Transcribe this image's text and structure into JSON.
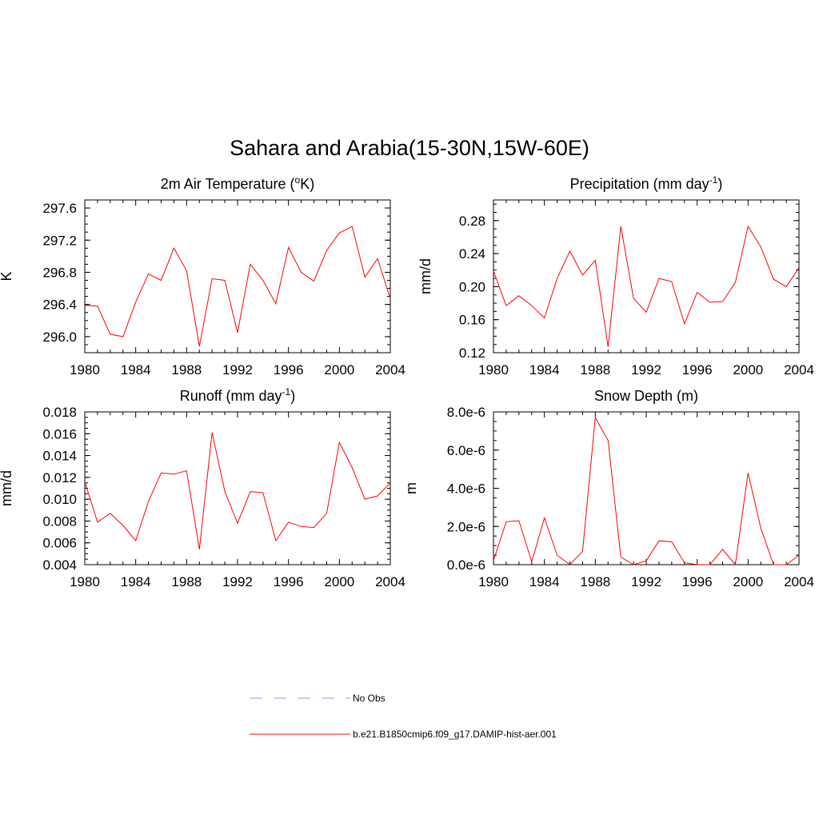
{
  "figure": {
    "title": "Sahara and Arabia(15-30N,15W-60E)"
  },
  "legend": [
    {
      "label": "No Obs",
      "color": "#9999ee",
      "style": "dashed"
    },
    {
      "label": "b.e21.B1850cmip6.f09_g17.DAMIP-hist-aer.001",
      "color": "#ff0000",
      "style": "solid"
    }
  ],
  "chart_data": [
    {
      "type": "line",
      "title": "2m Air Temperature (",
      "title_sup": "o",
      "title_after": "K)",
      "ylabel": "K",
      "xlim": [
        1980,
        2004
      ],
      "ylim": [
        295.8,
        297.7
      ],
      "x_ticks": [
        "1980",
        "1984",
        "1988",
        "1992",
        "1996",
        "2000",
        "2004"
      ],
      "y_ticks": [
        "296.0",
        "296.4",
        "296.8",
        "297.2",
        "297.6"
      ],
      "y_tick_values": [
        296.0,
        296.4,
        296.8,
        297.2,
        297.6
      ],
      "y_minor_step": 0.1,
      "x": [
        1980,
        1981,
        1982,
        1983,
        1984,
        1985,
        1986,
        1987,
        1988,
        1989,
        1990,
        1991,
        1992,
        1993,
        1994,
        1995,
        1996,
        1997,
        1998,
        1999,
        2000,
        2001,
        2002,
        2003,
        2004
      ],
      "series": [
        {
          "color": "#ff0000",
          "values": [
            296.39,
            296.38,
            296.03,
            296.0,
            296.43,
            296.78,
            296.7,
            297.1,
            296.82,
            295.88,
            296.72,
            296.7,
            296.05,
            296.9,
            296.7,
            296.41,
            297.11,
            296.8,
            296.69,
            297.07,
            297.29,
            297.37,
            296.74,
            296.97,
            296.47
          ]
        }
      ]
    },
    {
      "type": "line",
      "title": "Precipitation (mm day",
      "title_sup": "-1",
      "title_after": ")",
      "ylabel": "mm/d",
      "xlim": [
        1980,
        2004
      ],
      "ylim": [
        0.12,
        0.305
      ],
      "x_ticks": [
        "1980",
        "1984",
        "1988",
        "1992",
        "1996",
        "2000",
        "2004"
      ],
      "y_ticks": [
        "0.12",
        "0.16",
        "0.20",
        "0.24",
        "0.28"
      ],
      "y_tick_values": [
        0.12,
        0.16,
        0.2,
        0.24,
        0.28
      ],
      "y_minor_step": 0.01,
      "x": [
        1980,
        1981,
        1982,
        1983,
        1984,
        1985,
        1986,
        1987,
        1988,
        1989,
        1990,
        1991,
        1992,
        1993,
        1994,
        1995,
        1996,
        1997,
        1998,
        1999,
        2000,
        2001,
        2002,
        2003,
        2004
      ],
      "series": [
        {
          "color": "#ff0000",
          "values": [
            0.219,
            0.177,
            0.189,
            0.177,
            0.162,
            0.21,
            0.243,
            0.214,
            0.232,
            0.127,
            0.273,
            0.186,
            0.169,
            0.21,
            0.206,
            0.155,
            0.193,
            0.181,
            0.182,
            0.205,
            0.273,
            0.248,
            0.209,
            0.2,
            0.223
          ]
        }
      ]
    },
    {
      "type": "line",
      "title": "Runoff (mm day",
      "title_sup": "-1",
      "title_after": ")",
      "ylabel": "mm/d",
      "xlim": [
        1980,
        2004
      ],
      "ylim": [
        0.004,
        0.018
      ],
      "x_ticks": [
        "1980",
        "1984",
        "1988",
        "1992",
        "1996",
        "2000",
        "2004"
      ],
      "y_ticks": [
        "0.004",
        "0.006",
        "0.008",
        "0.010",
        "0.012",
        "0.014",
        "0.016",
        "0.018"
      ],
      "y_tick_values": [
        0.004,
        0.006,
        0.008,
        0.01,
        0.012,
        0.014,
        0.016,
        0.018
      ],
      "y_minor_step": 0.0005,
      "x": [
        1980,
        1981,
        1982,
        1983,
        1984,
        1985,
        1986,
        1987,
        1988,
        1989,
        1990,
        1991,
        1992,
        1993,
        1994,
        1995,
        1996,
        1997,
        1998,
        1999,
        2000,
        2001,
        2002,
        2003,
        2004
      ],
      "series": [
        {
          "color": "#ff0000",
          "values": [
            0.0116,
            0.0079,
            0.0087,
            0.0076,
            0.0062,
            0.0098,
            0.0124,
            0.0123,
            0.0126,
            0.0054,
            0.0161,
            0.0107,
            0.0078,
            0.0107,
            0.0106,
            0.0062,
            0.0079,
            0.0075,
            0.0074,
            0.0087,
            0.0152,
            0.0129,
            0.01,
            0.0103,
            0.0115
          ]
        }
      ]
    },
    {
      "type": "line",
      "title": "Snow Depth (m)",
      "title_sup": "",
      "title_after": "",
      "ylabel": "m",
      "xlim": [
        1980,
        2004
      ],
      "ylim": [
        0,
        8e-06
      ],
      "x_ticks": [
        "1980",
        "1984",
        "1988",
        "1992",
        "1996",
        "2000",
        "2004"
      ],
      "y_ticks": [
        "0.0e-6",
        "2.0e-6",
        "4.0e-6",
        "6.0e-6",
        "8.0e-6"
      ],
      "y_tick_values": [
        0,
        2e-06,
        4e-06,
        6e-06,
        8e-06
      ],
      "y_minor_step": 5e-07,
      "x": [
        1980,
        1981,
        1982,
        1983,
        1984,
        1985,
        1986,
        1987,
        1988,
        1989,
        1990,
        1991,
        1992,
        1993,
        1994,
        1995,
        1996,
        1997,
        1998,
        1999,
        2000,
        2001,
        2002,
        2003,
        2004
      ],
      "series": [
        {
          "color": "#ff0000",
          "values": [
            2e-07,
            2.25e-06,
            2.3e-06,
            1.5e-07,
            2.45e-06,
            5e-07,
            0,
            7e-07,
            7.7e-06,
            6.5e-06,
            4e-07,
            0,
            2e-07,
            1.25e-06,
            1.2e-06,
            1e-07,
            0,
            0,
            8e-07,
            0,
            4.8e-06,
            1.9e-06,
            0,
            0,
            5e-07
          ]
        }
      ]
    }
  ]
}
